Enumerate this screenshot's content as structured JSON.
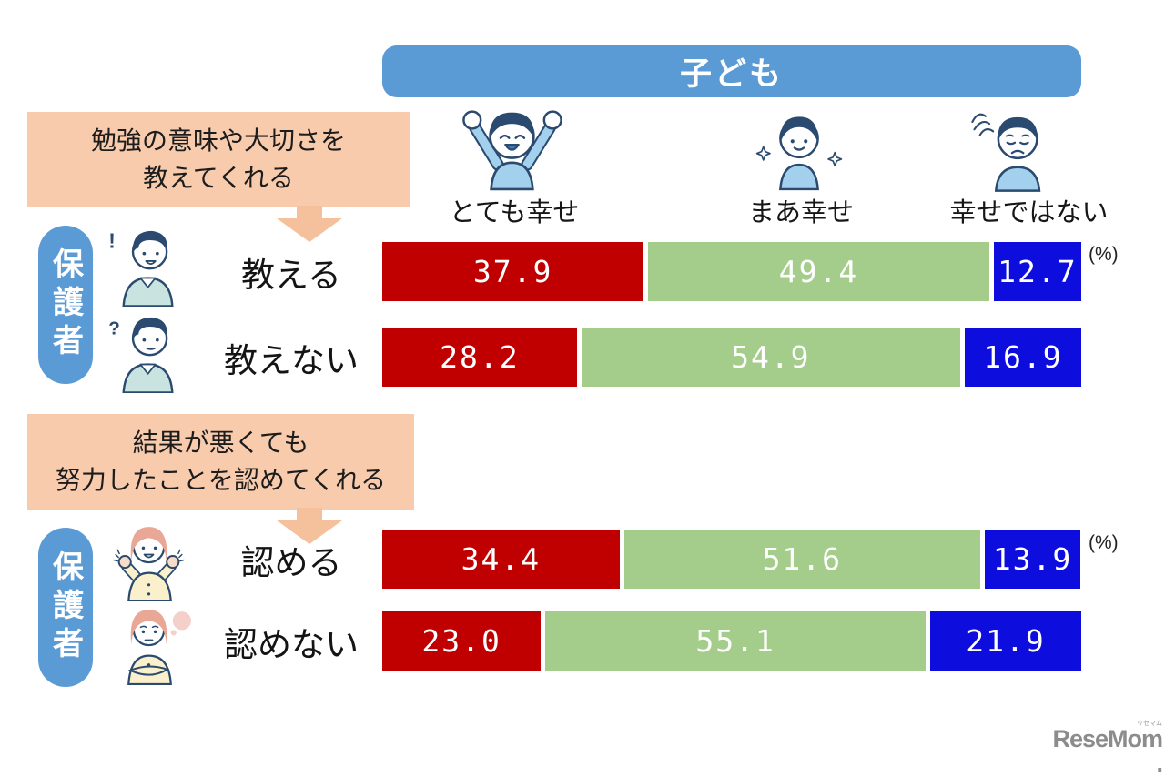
{
  "header": {
    "title": "子ども"
  },
  "columns": [
    {
      "label": "とても幸せ",
      "icon": "child-very-happy-icon"
    },
    {
      "label": "まあ幸せ",
      "icon": "child-somewhat-happy-icon"
    },
    {
      "label": "幸せではない",
      "icon": "child-not-happy-icon"
    }
  ],
  "guardian_label": "保護者",
  "unit_label": "(%)",
  "sections": [
    {
      "question": [
        "勉強の意味や大切さを",
        "教えてくれる"
      ]
    },
    {
      "question": [
        "結果が悪くても",
        "努力したことを認めてくれる"
      ]
    }
  ],
  "marks": {
    "positive": "!",
    "negative": "?"
  },
  "chart_data": {
    "type": "bar",
    "stacked": true,
    "orientation": "horizontal",
    "unit": "%",
    "xlim": [
      0,
      100
    ],
    "legend": [
      "とても幸せ",
      "まあ幸せ",
      "幸せではない"
    ],
    "series_colors": [
      "#C00000",
      "#A4CD8B",
      "#0D0DDE"
    ],
    "groups": [
      {
        "question": "勉強の意味や大切さを教えてくれる",
        "rows": [
          {
            "label": "教える",
            "values": [
              37.9,
              49.4,
              12.7
            ],
            "display": [
              "37.9",
              "49.4",
              "12.7"
            ]
          },
          {
            "label": "教えない",
            "values": [
              28.2,
              54.9,
              16.9
            ],
            "display": [
              "28.2",
              "54.9",
              "16.9"
            ]
          }
        ]
      },
      {
        "question": "結果が悪くても努力したことを認めてくれる",
        "rows": [
          {
            "label": "認める",
            "values": [
              34.4,
              51.6,
              13.9
            ],
            "display": [
              "34.4",
              "51.6",
              "13.9"
            ]
          },
          {
            "label": "認めない",
            "values": [
              23.0,
              55.1,
              21.9
            ],
            "display": [
              "23.0",
              "55.1",
              "21.9"
            ]
          }
        ]
      }
    ]
  },
  "logo": {
    "rese": "Rese",
    "mom": "Mom",
    "dot": ".",
    "ruby": "リセマム"
  },
  "colors": {
    "header_blue": "#5B9BD5",
    "box_peach": "#F8CBAD",
    "arrow_peach": "#F5C09C",
    "bar_red": "#C00000",
    "bar_green": "#A4CD8B",
    "bar_blue": "#0D0DDE",
    "outline_navy": "#2B4A6F",
    "logo_gray": "#8C8C8C"
  }
}
